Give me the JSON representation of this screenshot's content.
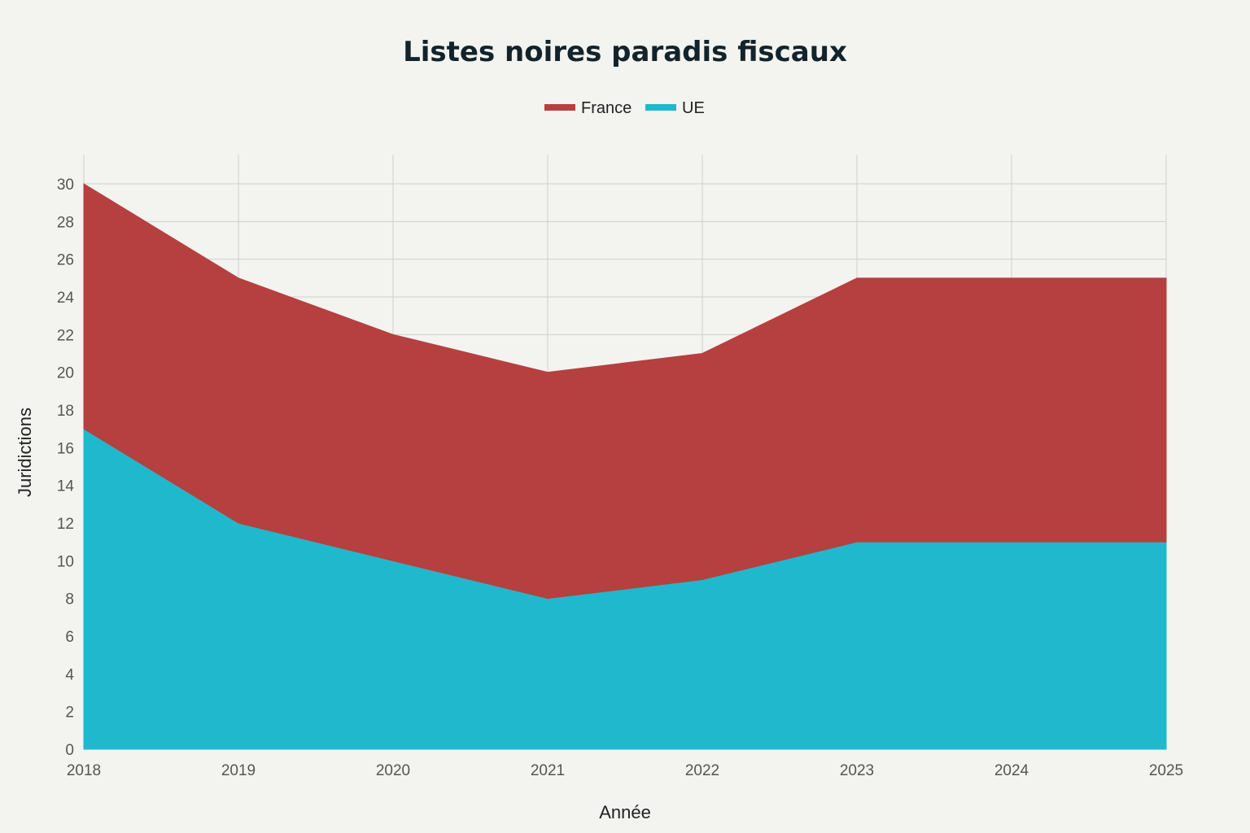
{
  "chart_data": {
    "type": "area",
    "stacked": true,
    "title": "Listes noires paradis fiscaux",
    "xlabel": "Année",
    "ylabel": "Juridictions",
    "x": [
      2018,
      2019,
      2020,
      2021,
      2022,
      2023,
      2024,
      2025
    ],
    "x_tick_labels": [
      "2018",
      "2019",
      "2020",
      "2021",
      "2022",
      "2023",
      "2024",
      "2025"
    ],
    "ylim": [
      0,
      30
    ],
    "y_ticks": [
      0,
      2,
      4,
      6,
      8,
      10,
      12,
      14,
      16,
      18,
      20,
      22,
      24,
      26,
      28,
      30
    ],
    "grid": true,
    "legend_position": "top-center",
    "series": [
      {
        "name": "UE",
        "color": "#20b8cc",
        "values": [
          17,
          12,
          10,
          8,
          9,
          11,
          11,
          11
        ]
      },
      {
        "name": "France",
        "color": "#b5403f",
        "values": [
          13,
          13,
          12,
          12,
          12,
          14,
          14,
          14
        ]
      }
    ],
    "legend_order": [
      "France",
      "UE"
    ]
  }
}
